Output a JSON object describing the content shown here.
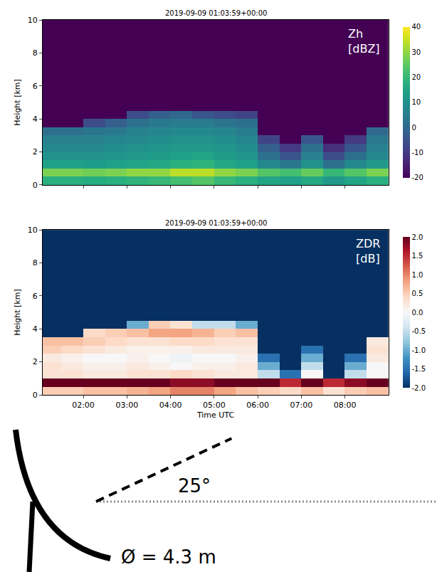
{
  "chart_data": [
    {
      "type": "heatmap",
      "title": "2019-09-09 01:03:59+00:00",
      "label": "Zh [dBZ]",
      "y_label": "Height [km]",
      "tick_labels": "y",
      "x": [
        1.25,
        1.75,
        2.25,
        2.75,
        3.25,
        3.75,
        4.25,
        4.75,
        5.25,
        5.75,
        6.25,
        6.75,
        7.25,
        7.75,
        8.25,
        8.75
      ],
      "y": [
        0.25,
        0.75,
        1.25,
        1.75,
        2.25,
        2.75,
        3.25,
        3.75,
        4.25,
        4.75,
        5.25,
        5.75,
        6.25,
        6.75,
        7.25,
        7.75,
        8.25,
        8.75,
        9.25,
        9.75
      ],
      "xlim": [
        1.07,
        9.0
      ],
      "ylim": [
        0,
        10
      ],
      "xticks": [
        {
          "value": 2,
          "label": "02:00"
        },
        {
          "value": 3,
          "label": "03:00"
        },
        {
          "value": 4,
          "label": "04:00"
        },
        {
          "value": 5,
          "label": "05:00"
        },
        {
          "value": 6,
          "label": "06:00"
        },
        {
          "value": 7,
          "label": "07:00"
        },
        {
          "value": 8,
          "label": "08:00"
        }
      ],
      "yticks": [
        0,
        2,
        4,
        6,
        8,
        10
      ],
      "cells": [
        [
          18,
          18,
          17,
          18,
          19,
          20,
          22,
          24,
          20,
          18,
          15,
          14,
          16,
          12,
          15,
          18
        ],
        [
          28,
          28,
          27,
          28,
          30,
          30,
          34,
          34,
          30,
          28,
          24,
          22,
          26,
          20,
          24,
          28
        ],
        [
          14,
          14,
          13,
          14,
          15,
          16,
          18,
          19,
          16,
          14,
          8,
          4,
          10,
          2,
          8,
          12
        ],
        [
          10,
          10,
          10,
          11,
          12,
          13,
          14,
          15,
          13,
          11,
          2,
          -4,
          6,
          -6,
          2,
          8
        ],
        [
          8,
          8,
          8,
          9,
          10,
          11,
          12,
          12,
          11,
          9,
          -2,
          -10,
          2,
          -12,
          -4,
          6
        ],
        [
          6,
          6,
          6,
          7,
          8,
          9,
          10,
          10,
          9,
          7,
          -8,
          -20,
          -4,
          -20,
          -10,
          4
        ],
        [
          2,
          2,
          3,
          4,
          6,
          7,
          8,
          8,
          7,
          5,
          -20,
          -20,
          -20,
          -20,
          -20,
          0
        ],
        [
          -20,
          -20,
          -6,
          -2,
          2,
          4,
          5,
          5,
          3,
          2,
          -20,
          -20,
          -20,
          -20,
          -20,
          -20
        ],
        [
          -20,
          -20,
          -20,
          -20,
          -6,
          -2,
          0,
          -4,
          -6,
          -8,
          -20,
          -20,
          -20,
          -20,
          -20,
          -20
        ],
        [
          -20,
          -20,
          -20,
          -20,
          -20,
          -20,
          -20,
          -20,
          -20,
          -20,
          -20,
          -20,
          -20,
          -20,
          -20,
          -20
        ],
        [
          -20,
          -20,
          -20,
          -20,
          -20,
          -20,
          -20,
          -20,
          -20,
          -20,
          -20,
          -20,
          -20,
          -20,
          -20,
          -20
        ],
        [
          -20,
          -20,
          -20,
          -20,
          -20,
          -20,
          -20,
          -20,
          -20,
          -20,
          -20,
          -20,
          -20,
          -20,
          -20,
          -20
        ],
        [
          -20,
          -20,
          -20,
          -20,
          -20,
          -20,
          -20,
          -20,
          -20,
          -20,
          -20,
          -20,
          -20,
          -20,
          -20,
          -20
        ],
        [
          -20,
          -20,
          -20,
          -20,
          -20,
          -20,
          -20,
          -20,
          -20,
          -20,
          -20,
          -20,
          -20,
          -20,
          -20,
          -20
        ],
        [
          -20,
          -20,
          -20,
          -20,
          -20,
          -20,
          -20,
          -20,
          -20,
          -20,
          -20,
          -20,
          -20,
          -20,
          -20,
          -20
        ],
        [
          -20,
          -20,
          -20,
          -20,
          -20,
          -20,
          -20,
          -20,
          -20,
          -20,
          -20,
          -20,
          -20,
          -20,
          -20,
          -20
        ],
        [
          -20,
          -20,
          -20,
          -20,
          -20,
          -20,
          -20,
          -20,
          -20,
          -20,
          -20,
          -20,
          -20,
          -20,
          -20,
          -20
        ],
        [
          -20,
          -20,
          -20,
          -20,
          -20,
          -20,
          -20,
          -20,
          -20,
          -20,
          -20,
          -20,
          -20,
          -20,
          -20,
          -20
        ],
        [
          -20,
          -20,
          -20,
          -20,
          -20,
          -20,
          -20,
          -20,
          -20,
          -20,
          -20,
          -20,
          -20,
          -20,
          -20,
          -20
        ],
        [
          -20,
          -20,
          -20,
          -20,
          -20,
          -20,
          -20,
          -20,
          -20,
          -20,
          -20,
          -20,
          -20,
          -20,
          -20,
          -20
        ]
      ],
      "colorbar": {
        "range": [
          -20,
          40
        ],
        "ticks": [
          -20,
          -10,
          0,
          10,
          20,
          30,
          40
        ]
      }
    },
    {
      "type": "heatmap",
      "title": "2019-09-09 01:03:59+00:00",
      "label": "ZDR [dB]",
      "y_label": "Height [km]",
      "x_label": "Time UTC",
      "x": [
        1.25,
        1.75,
        2.25,
        2.75,
        3.25,
        3.75,
        4.25,
        4.75,
        5.25,
        5.75,
        6.25,
        6.75,
        7.25,
        7.75,
        8.25,
        8.75
      ],
      "y": [
        0.25,
        0.75,
        1.25,
        1.75,
        2.25,
        2.75,
        3.25,
        3.75,
        4.25,
        4.75,
        5.25,
        5.75,
        6.25,
        6.75,
        7.25,
        7.75,
        8.25,
        8.75,
        9.25,
        9.75
      ],
      "xlim": [
        1.07,
        9.0
      ],
      "ylim": [
        0,
        10
      ],
      "xticks": [
        {
          "value": 2,
          "label": "02:00"
        },
        {
          "value": 3,
          "label": "03:00"
        },
        {
          "value": 4,
          "label": "04:00"
        },
        {
          "value": 5,
          "label": "05:00"
        },
        {
          "value": 6,
          "label": "06:00"
        },
        {
          "value": 7,
          "label": "07:00"
        },
        {
          "value": 8,
          "label": "08:00"
        }
      ],
      "yticks": [
        0,
        2,
        4,
        6,
        8,
        10
      ],
      "cells": [
        [
          0.5,
          0.5,
          0.6,
          0.6,
          0.7,
          0.8,
          1.0,
          1.0,
          0.8,
          0.6,
          0.5,
          0.4,
          0.6,
          0.3,
          0.5,
          0.6
        ],
        [
          2,
          2,
          2,
          2,
          2,
          2,
          1.8,
          1.8,
          2,
          2,
          2,
          1.5,
          2,
          1.5,
          1.8,
          2
        ],
        [
          0.3,
          0.3,
          0.2,
          0.2,
          0.3,
          0.3,
          0.4,
          0.3,
          0.2,
          0.2,
          -0.5,
          -1.5,
          0,
          -2,
          -0.5,
          0
        ],
        [
          0.3,
          0.2,
          0.1,
          0.1,
          0.2,
          0.1,
          0,
          0.1,
          0.1,
          0.2,
          -1,
          -2,
          -0.5,
          -2,
          -1,
          0
        ],
        [
          0.2,
          0.1,
          0,
          0,
          0.1,
          0,
          -0.1,
          0,
          0,
          0.1,
          -1.5,
          -2,
          -1,
          -2,
          -1.5,
          0.2
        ],
        [
          0.5,
          0.4,
          0.3,
          0.2,
          0.1,
          0.1,
          0.1,
          0.2,
          0.2,
          0.2,
          -2,
          -2,
          -1.5,
          -2,
          -2,
          0.3
        ],
        [
          0.6,
          0.6,
          0.5,
          0.4,
          0.3,
          0.3,
          0.4,
          0.4,
          0.3,
          0.3,
          -2,
          -2,
          -2,
          -2,
          -2,
          0.2
        ],
        [
          -2,
          -2,
          0.4,
          0.5,
          0.6,
          0.8,
          0.8,
          0.7,
          0.5,
          0.6,
          -2,
          -2,
          -2,
          -2,
          -2,
          -2
        ],
        [
          -2,
          -2,
          -2,
          -2,
          -1,
          0.5,
          0.3,
          -0.5,
          -0.5,
          -1,
          -2,
          -2,
          -2,
          -2,
          -2,
          -2
        ],
        [
          -2,
          -2,
          -2,
          -2,
          -2,
          -2,
          -2,
          -2,
          -2,
          -2,
          -2,
          -2,
          -2,
          -2,
          -2,
          -2
        ],
        [
          -2,
          -2,
          -2,
          -2,
          -2,
          -2,
          -2,
          -2,
          -2,
          -2,
          -2,
          -2,
          -2,
          -2,
          -2,
          -2
        ],
        [
          -2,
          -2,
          -2,
          -2,
          -2,
          -2,
          -2,
          -2,
          -2,
          -2,
          -2,
          -2,
          -2,
          -2,
          -2,
          -2
        ],
        [
          -2,
          -2,
          -2,
          -2,
          -2,
          -2,
          -2,
          -2,
          -2,
          -2,
          -2,
          -2,
          -2,
          -2,
          -2,
          -2
        ],
        [
          -2,
          -2,
          -2,
          -2,
          -2,
          -2,
          -2,
          -2,
          -2,
          -2,
          -2,
          -2,
          -2,
          -2,
          -2,
          -2
        ],
        [
          -2,
          -2,
          -2,
          -2,
          -2,
          -2,
          -2,
          -2,
          -2,
          -2,
          -2,
          -2,
          -2,
          -2,
          -2,
          -2
        ],
        [
          -2,
          -2,
          -2,
          -2,
          -2,
          -2,
          -2,
          -2,
          -2,
          -2,
          -2,
          -2,
          -2,
          -2,
          -2,
          -2
        ],
        [
          -2,
          -2,
          -2,
          -2,
          -2,
          -2,
          -2,
          -2,
          -2,
          -2,
          -2,
          -2,
          -2,
          -2,
          -2,
          -2
        ],
        [
          -2,
          -2,
          -2,
          -2,
          -2,
          -2,
          -2,
          -2,
          -2,
          -2,
          -2,
          -2,
          -2,
          -2,
          -2,
          -2
        ],
        [
          -2,
          -2,
          -2,
          -2,
          -2,
          -2,
          -2,
          -2,
          -2,
          -2,
          -2,
          -2,
          -2,
          -2,
          -2,
          -2
        ],
        [
          -2,
          -2,
          -2,
          -2,
          -2,
          -2,
          -2,
          -2,
          -2,
          -2,
          -2,
          -2,
          -2,
          -2,
          -2,
          -2
        ]
      ],
      "colorbar": {
        "range": [
          -2,
          2
        ],
        "ticks": [
          {
            "value": -2,
            "label": "-2.0"
          },
          -1.5,
          {
            "value": -1,
            "label": "-1.0"
          },
          -0.5,
          {
            "value": 0,
            "label": "0.0"
          },
          0.5,
          {
            "value": 1,
            "label": "1.0"
          },
          1.5,
          {
            "value": 2,
            "label": "2.0"
          }
        ]
      }
    }
  ],
  "diagram": {
    "elevation_deg": 25,
    "elevation_label": "25°",
    "diameter_label": "Ø = 4.3 m"
  }
}
